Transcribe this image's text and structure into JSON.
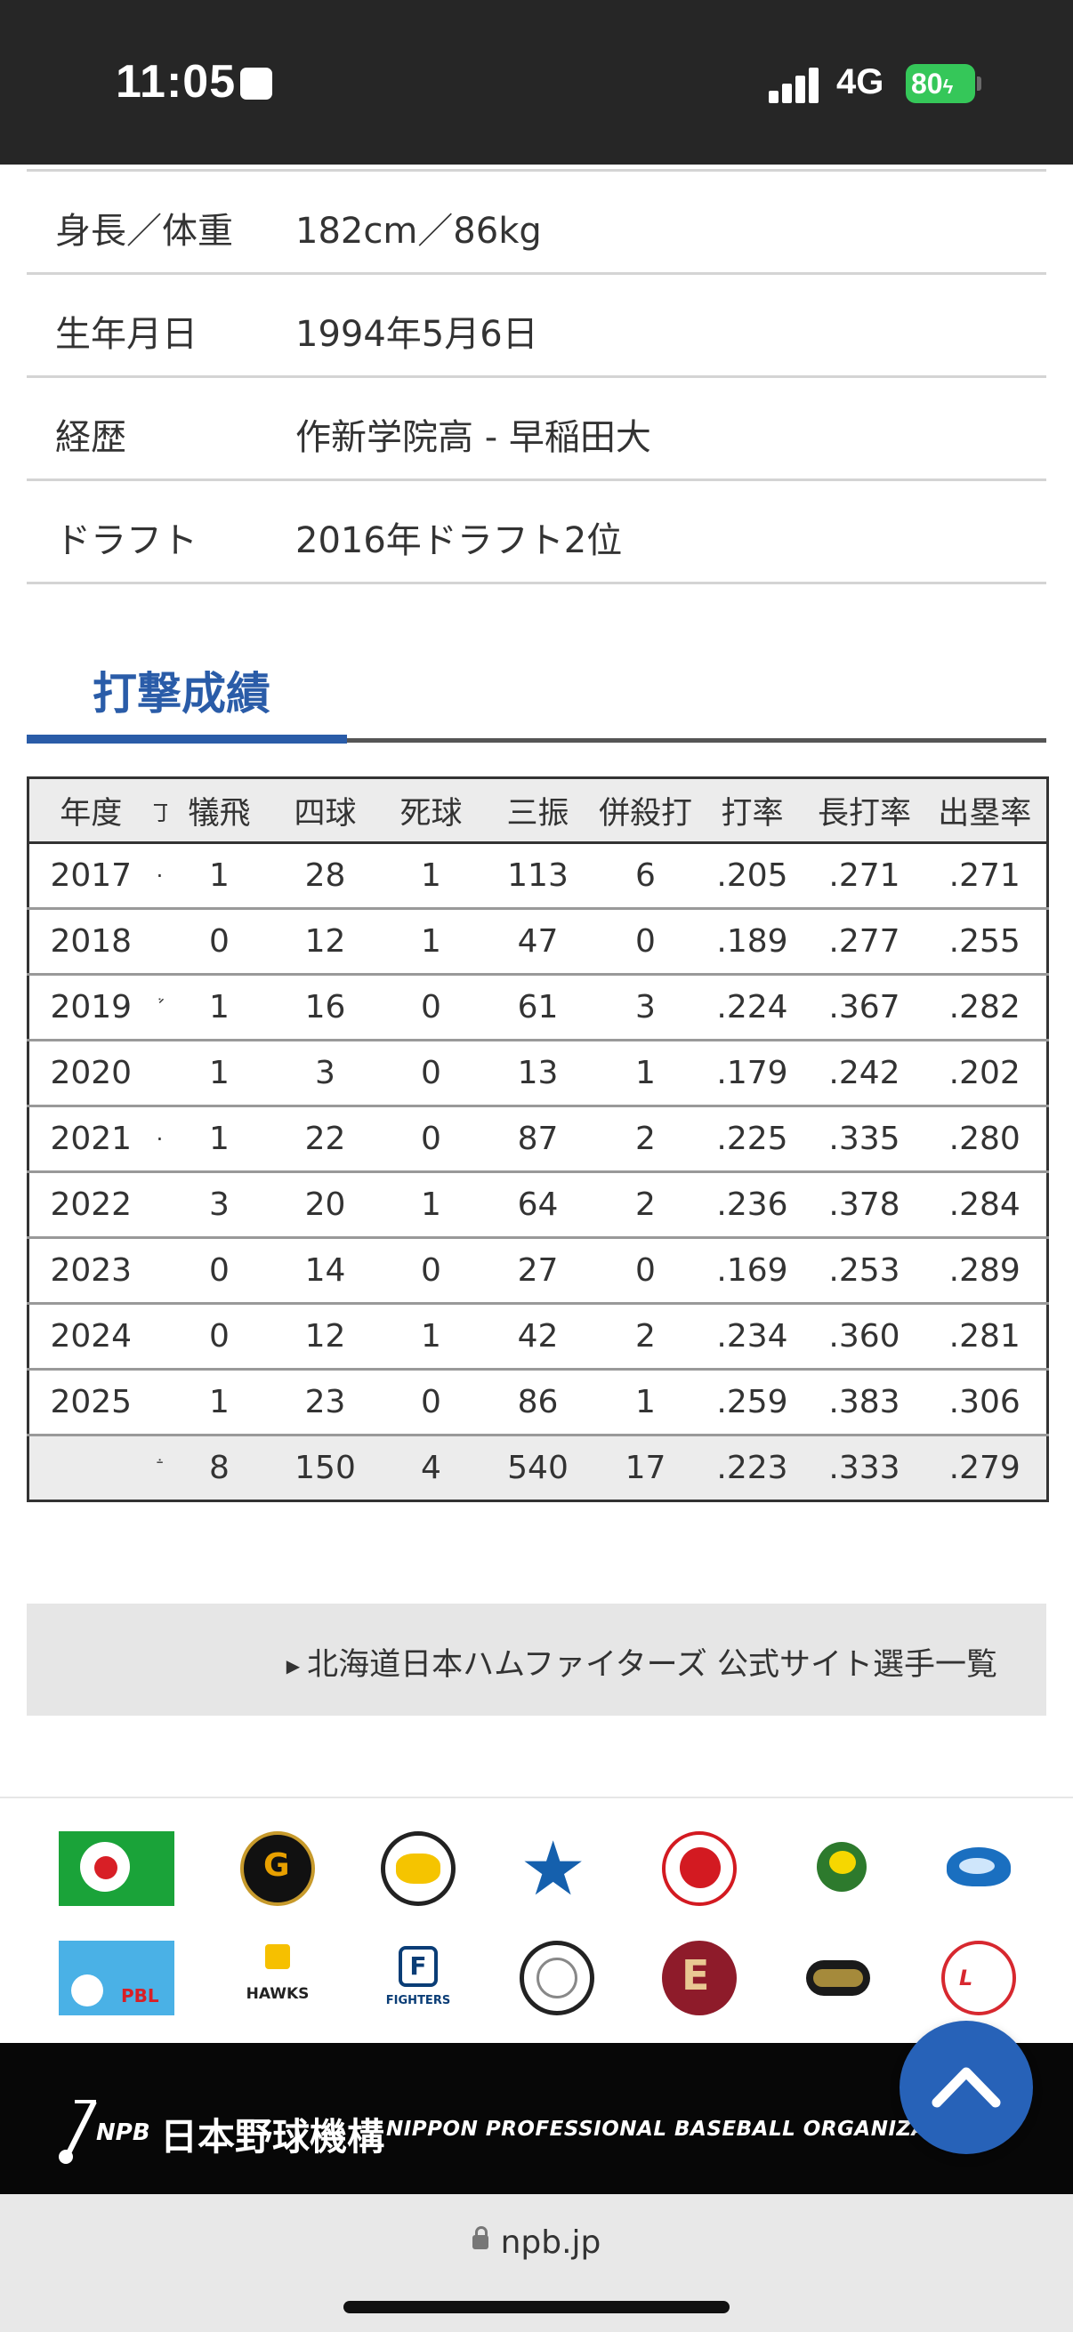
{
  "status_bar": {
    "time": "11:05",
    "network": "4G",
    "battery": "80"
  },
  "profile": [
    {
      "key": "身長／体重",
      "value": "182cm／86kg"
    },
    {
      "key": "生年月日",
      "value": "1994年5月6日"
    },
    {
      "key": "経歴",
      "value": "作新学院高 - 早稲田大"
    },
    {
      "key": "ドラフト",
      "value": "2016年ドラフト2位"
    }
  ],
  "section_title": "打撃成績",
  "table": {
    "headers": [
      "年度",
      "丁",
      "犠飛",
      "四球",
      "死球",
      "三振",
      "併殺打",
      "打率",
      "長打率",
      "出塁率"
    ],
    "rows": [
      [
        "2017",
        "·",
        "1",
        "28",
        "1",
        "113",
        "6",
        ".205",
        ".271",
        ".271"
      ],
      [
        "2018",
        "",
        "0",
        "12",
        "1",
        "47",
        "0",
        ".189",
        ".277",
        ".255"
      ],
      [
        "2019",
        "ꜘ",
        "1",
        "16",
        "0",
        "61",
        "3",
        ".224",
        ".367",
        ".282"
      ],
      [
        "2020",
        "",
        "1",
        "3",
        "0",
        "13",
        "1",
        ".179",
        ".242",
        ".202"
      ],
      [
        "2021",
        "·",
        "1",
        "22",
        "0",
        "87",
        "2",
        ".225",
        ".335",
        ".280"
      ],
      [
        "2022",
        "",
        "3",
        "20",
        "1",
        "64",
        "2",
        ".236",
        ".378",
        ".284"
      ],
      [
        "2023",
        "",
        "0",
        "14",
        "0",
        "27",
        "0",
        ".169",
        ".253",
        ".289"
      ],
      [
        "2024",
        "",
        "0",
        "12",
        "1",
        "42",
        "2",
        ".234",
        ".360",
        ".281"
      ],
      [
        "2025",
        "",
        "1",
        "23",
        "0",
        "86",
        "1",
        ".259",
        ".383",
        ".306"
      ]
    ],
    "total": [
      "",
      "ꜙ",
      "8",
      "150",
      "4",
      "540",
      "17",
      ".223",
      ".333",
      ".279"
    ]
  },
  "team_link": "北海道日本ハムファイターズ 公式サイト選手一覧",
  "logos": [
    {
      "name": "central-league-logo",
      "color": "#1aa339"
    },
    {
      "name": "giants-logo",
      "color": "#111111"
    },
    {
      "name": "tigers-logo",
      "color": "#f5c400"
    },
    {
      "name": "baystars-logo",
      "color": "#1560ad"
    },
    {
      "name": "carp-logo",
      "color": "#d31a21"
    },
    {
      "name": "swallows-logo",
      "color": "#2d7a2d"
    },
    {
      "name": "dragons-logo",
      "color": "#1a6fc0"
    },
    {
      "name": "pacific-league-logo",
      "color": "#4ab1e6"
    },
    {
      "name": "hawks-logo",
      "color": "#f6c000"
    },
    {
      "name": "fighters-logo",
      "color": "#0a3d76"
    },
    {
      "name": "marines-logo",
      "color": "#222222"
    },
    {
      "name": "eagles-logo",
      "color": "#8e1b2a"
    },
    {
      "name": "buffaloes-logo",
      "color": "#a58a3b"
    },
    {
      "name": "lions-logo",
      "color": "#d7282f"
    }
  ],
  "footer": {
    "abbr": "NPB",
    "org_jp": "日本野球機構",
    "org_en": "NIPPON PROFESSIONAL BASEBALL ORGANIZATION"
  },
  "url": "npb.jp",
  "colors": {
    "accent": "#2a5ca8",
    "fab": "#2762b8"
  }
}
